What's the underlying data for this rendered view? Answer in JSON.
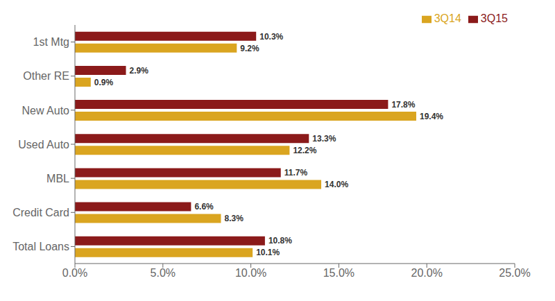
{
  "chart_data": {
    "type": "bar",
    "orientation": "horizontal",
    "categories": [
      "1st Mtg",
      "Other RE",
      "New Auto",
      "Used Auto",
      "MBL",
      "Credit Card",
      "Total Loans"
    ],
    "series": [
      {
        "name": "3Q15",
        "color": "#8B1A1A",
        "values": [
          10.3,
          2.9,
          17.8,
          13.3,
          11.7,
          6.6,
          10.8
        ],
        "value_labels": [
          "10.3%",
          "2.9%",
          "17.8%",
          "13.3%",
          "11.7%",
          "6.6%",
          "10.8%"
        ]
      },
      {
        "name": "3Q14",
        "color": "#DAA520",
        "values": [
          9.2,
          0.9,
          19.4,
          12.2,
          14.0,
          8.3,
          10.1
        ],
        "value_labels": [
          "9.2%",
          "0.9%",
          "19.4%",
          "12.2%",
          "14.0%",
          "8.3%",
          "10.1%"
        ]
      }
    ],
    "xlim": [
      0,
      25
    ],
    "xticks": [
      {
        "value": 0,
        "label": "0.0%"
      },
      {
        "value": 5,
        "label": "5.0%"
      },
      {
        "value": 10,
        "label": "10.0%"
      },
      {
        "value": 15,
        "label": "15.0%"
      },
      {
        "value": 20,
        "label": "20.0%"
      },
      {
        "value": 25,
        "label": "25.0%"
      }
    ],
    "grid": false,
    "legend": "upper right",
    "data_labels": true
  }
}
